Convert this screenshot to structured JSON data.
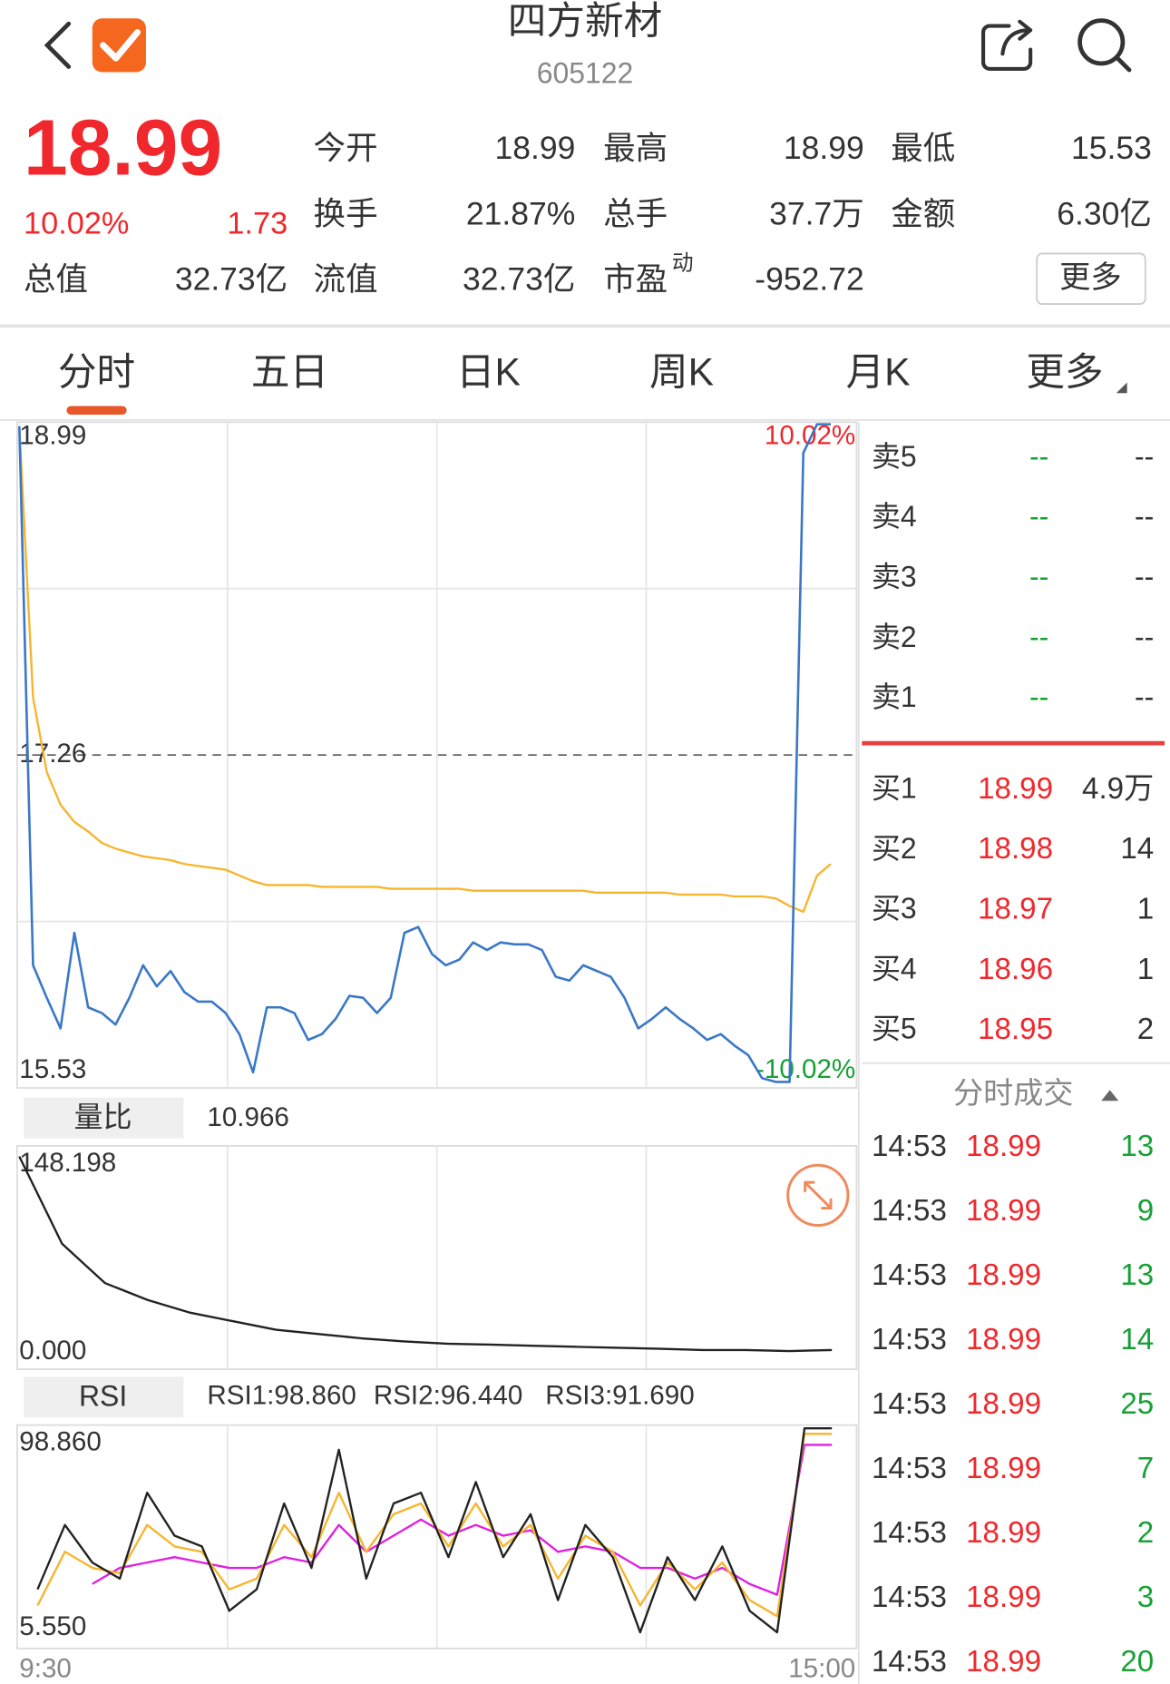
{
  "header": {
    "title": "四方新材",
    "code": "605122"
  },
  "quote": {
    "price": 18.99,
    "change_pct": "10.02%",
    "change": 1.73,
    "stats": [
      {
        "label": "今开",
        "value": 18.99,
        "color": "#f0282d"
      },
      {
        "label": "最高",
        "value": 18.99,
        "color": "#f0282d"
      },
      {
        "label": "最低",
        "value": 15.53,
        "color": "#17a135"
      },
      {
        "label": "换手",
        "value": "21.87%",
        "color": "#333333"
      },
      {
        "label": "总手",
        "value": "37.7万",
        "color": "#333333"
      },
      {
        "label": "金额",
        "value": "6.30亿",
        "color": "#333333"
      },
      {
        "label": "总值",
        "value": "32.73亿",
        "color": "#333333"
      },
      {
        "label": "流值",
        "value": "32.73亿",
        "color": "#333333"
      },
      {
        "label": "市盈",
        "superscript": "动",
        "value": -952.72,
        "color": "#333333"
      }
    ],
    "more_button": "更多"
  },
  "tabs": {
    "items": [
      "分时",
      "五日",
      "日K",
      "周K",
      "月K",
      "更多"
    ],
    "active": 0
  },
  "intraday": {
    "ylim": [
      15.53,
      18.99
    ],
    "yticks": [
      15.53,
      17.26,
      18.99
    ],
    "ytick_colors": [
      "#17a135",
      "#888888",
      "#f0282d"
    ],
    "pct_labels": [
      "10.02%",
      "-10.02%"
    ],
    "price": [
      18.98,
      16.16,
      15.99,
      15.83,
      16.33,
      15.94,
      15.91,
      15.85,
      15.99,
      16.16,
      16.05,
      16.13,
      16.02,
      15.97,
      15.97,
      15.91,
      15.8,
      15.6,
      15.94,
      15.94,
      15.91,
      15.77,
      15.8,
      15.88,
      16.0,
      15.99,
      15.91,
      15.99,
      16.33,
      16.36,
      16.22,
      16.16,
      16.19,
      16.28,
      16.24,
      16.28,
      16.27,
      16.27,
      16.24,
      16.1,
      16.08,
      16.16,
      16.13,
      16.1,
      15.99,
      15.83,
      15.88,
      15.94,
      15.88,
      15.83,
      15.77,
      15.8,
      15.74,
      15.69,
      15.57,
      15.55,
      15.55,
      18.84,
      18.99,
      18.99
    ],
    "avg": [
      18.98,
      17.56,
      17.17,
      17.0,
      16.91,
      16.86,
      16.8,
      16.77,
      16.75,
      16.73,
      16.72,
      16.71,
      16.69,
      16.68,
      16.67,
      16.66,
      16.63,
      16.6,
      16.58,
      16.58,
      16.58,
      16.58,
      16.57,
      16.57,
      16.57,
      16.57,
      16.57,
      16.56,
      16.56,
      16.56,
      16.56,
      16.56,
      16.56,
      16.55,
      16.55,
      16.55,
      16.55,
      16.55,
      16.55,
      16.55,
      16.55,
      16.55,
      16.54,
      16.54,
      16.54,
      16.54,
      16.54,
      16.54,
      16.53,
      16.53,
      16.53,
      16.53,
      16.52,
      16.52,
      16.52,
      16.51,
      16.47,
      16.44,
      16.63,
      16.69
    ]
  },
  "volume_ratio": {
    "label": "量比",
    "value": 10.966,
    "ylim": [
      0,
      148.198
    ],
    "yticks": [
      {
        "value": 0,
        "label": "0.000"
      },
      148.198
    ],
    "values": [
      142.8,
      79.5,
      50.9,
      38.6,
      29.3,
      23.2,
      17.0,
      13.9,
      10.8,
      8.5,
      6.9,
      6.2,
      5.4,
      4.6,
      3.9,
      3.1,
      2.3,
      2.3,
      1.5,
      2.3
    ]
  },
  "rsi": {
    "label": "RSI",
    "ylim": [
      5.55,
      98.86
    ],
    "yticks": [
      {
        "value": 5.55,
        "label": "5.550"
      },
      {
        "value": 98.86,
        "label": "98.860"
      }
    ],
    "series": [
      {
        "name": "RSI1:98.860",
        "color": "#222222",
        "values": [
          28.88,
          56.87,
          40.54,
          33.54,
          70.87,
          52.2,
          47.54,
          19.55,
          28.88,
          66.2,
          38.21,
          89.53,
          33.54,
          66.2,
          70.87,
          42.87,
          75.53,
          42.87,
          61.54,
          24.21,
          56.87,
          42.87,
          10.22,
          42.87,
          24.21,
          47.54,
          19.55,
          10.22,
          98.86,
          98.86
        ]
      },
      {
        "name": "RSI2:96.440",
        "color": "#f7b52c",
        "values": [
          21.88,
          45.21,
          38.21,
          35.88,
          56.87,
          47.54,
          45.21,
          28.88,
          33.54,
          56.87,
          42.87,
          70.87,
          45.21,
          61.54,
          66.2,
          47.54,
          66.2,
          47.54,
          56.87,
          33.54,
          52.2,
          45.21,
          21.88,
          40.54,
          28.88,
          40.54,
          24.21,
          17.21,
          96.44,
          96.44
        ]
      },
      {
        "name": "RSI3:91.690",
        "color": "#e020e0",
        "values": [
          null,
          null,
          31.21,
          38.21,
          40.54,
          42.87,
          40.54,
          38.21,
          38.21,
          42.87,
          40.54,
          56.87,
          45.21,
          52.2,
          59.2,
          52.2,
          56.87,
          52.2,
          54.54,
          45.21,
          47.54,
          45.21,
          38.21,
          38.21,
          33.54,
          38.21,
          31.21,
          26.54,
          91.69,
          91.69
        ]
      }
    ]
  },
  "time_axis": [
    "9:30",
    "15:00"
  ],
  "order_book": {
    "asks": [
      {
        "label": "卖5",
        "price": "--",
        "volume": "--"
      },
      {
        "label": "卖4",
        "price": "--",
        "volume": "--"
      },
      {
        "label": "卖3",
        "price": "--",
        "volume": "--"
      },
      {
        "label": "卖2",
        "price": "--",
        "volume": "--"
      },
      {
        "label": "卖1",
        "price": "--",
        "volume": "--"
      }
    ],
    "bids": [
      {
        "label": "买1",
        "price": 18.99,
        "volume": "4.9万"
      },
      {
        "label": "买2",
        "price": 18.98,
        "volume": 14
      },
      {
        "label": "买3",
        "price": 18.97,
        "volume": 1
      },
      {
        "label": "买4",
        "price": 18.96,
        "volume": 1
      },
      {
        "label": "买5",
        "price": 18.95,
        "volume": 2
      }
    ]
  },
  "trades": {
    "title": "分时成交",
    "rows": [
      {
        "time": "14:53",
        "price": 18.99,
        "volume": 13
      },
      {
        "time": "14:53",
        "price": 18.99,
        "volume": 9
      },
      {
        "time": "14:53",
        "price": 18.99,
        "volume": 13
      },
      {
        "time": "14:53",
        "price": 18.99,
        "volume": 14
      },
      {
        "time": "14:53",
        "price": 18.99,
        "volume": 25
      },
      {
        "time": "14:53",
        "price": 18.99,
        "volume": 7
      },
      {
        "time": "14:53",
        "price": 18.99,
        "volume": 2
      },
      {
        "time": "14:53",
        "price": 18.99,
        "volume": 3
      },
      {
        "time": "14:53",
        "price": 18.99,
        "volume": 20
      }
    ]
  }
}
